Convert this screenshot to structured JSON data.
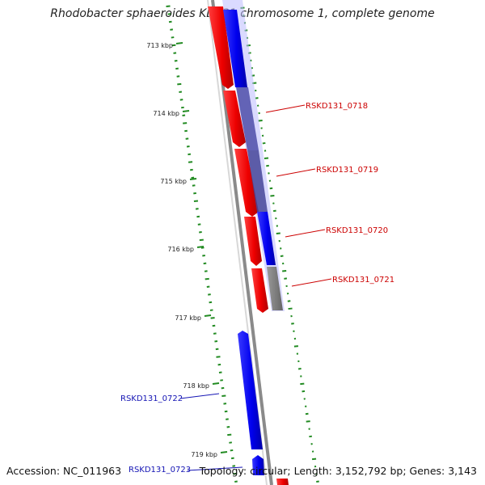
{
  "title": "Rhodobacter sphaeroides KD131 chromosome 1, complete genome",
  "footer": {
    "accession": "Accession: NC_011963",
    "topology": "Topology: circular; Length: 3,152,792 bp; Genes: 3,143"
  },
  "ticks": [
    "713 kbp",
    "714 kbp",
    "715 kbp",
    "716 kbp",
    "717 kbp",
    "718 kbp",
    "719 kbp"
  ],
  "genes": [
    {
      "id": "RSKD131_0718",
      "color": "#cc0000"
    },
    {
      "id": "RSKD131_0719",
      "color": "#cc0000"
    },
    {
      "id": "RSKD131_0720",
      "color": "#cc0000"
    },
    {
      "id": "RSKD131_0721",
      "color": "#cc0000"
    },
    {
      "id": "RSKD131_0722",
      "color": "#1414b4"
    },
    {
      "id": "RSKD131_0723",
      "color": "#1414b4"
    }
  ],
  "colors": {
    "forward": "#ff0000",
    "reverse": "#0000ee",
    "backbone": "#888888",
    "gc_marks": "#228b22"
  }
}
